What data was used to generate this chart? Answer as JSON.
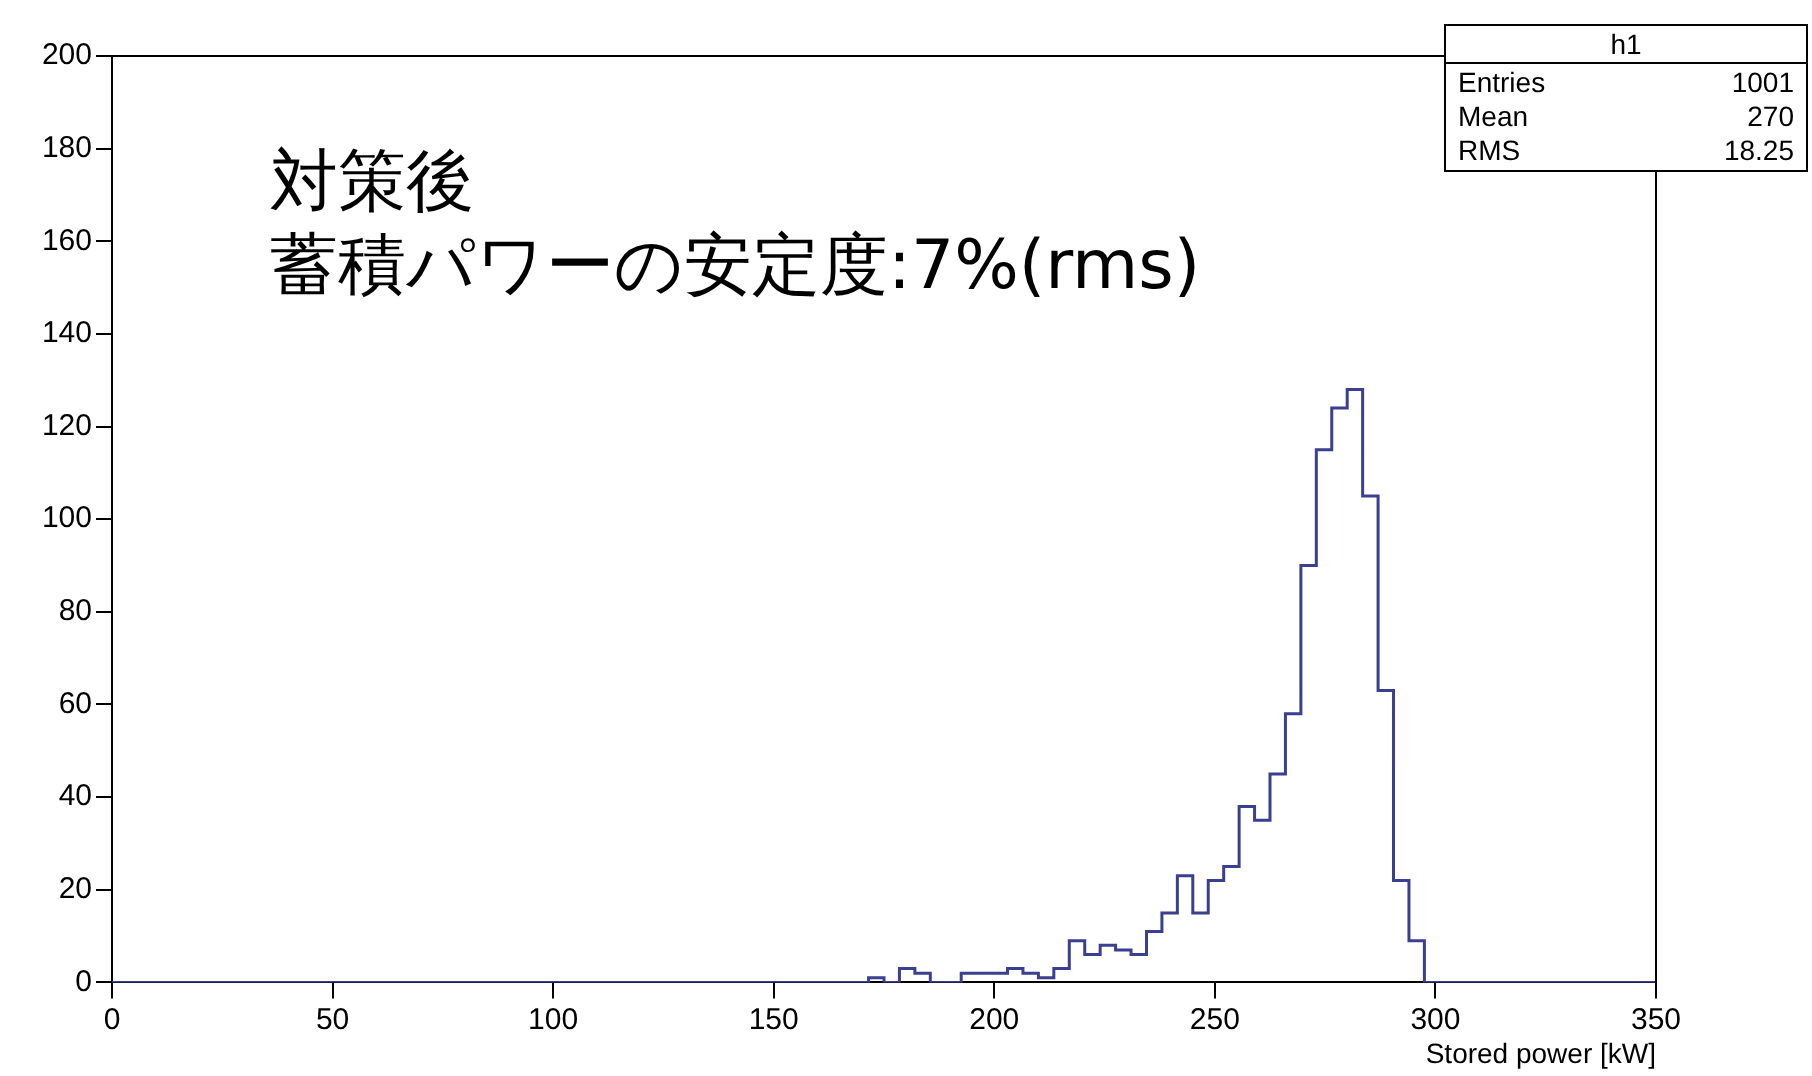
{
  "chart_data": {
    "type": "histogram",
    "xlabel": "Stored power [kW]",
    "annotations": [
      "対策後",
      "蓄積パワーの安定度:7%(rms)",
      "h1",
      "Entries 1001",
      "Mean 270",
      "RMS 18.25"
    ],
    "bins": [
      0,
      3.5,
      7,
      10.5,
      14,
      17.5,
      21,
      24.5,
      28,
      31.5,
      35,
      38.5,
      42,
      45.5,
      49,
      52.5,
      56,
      59.5,
      63,
      66.5,
      70,
      73.5,
      77,
      80.5,
      84,
      87.5,
      91,
      94.5,
      98,
      101.5,
      105,
      108.5,
      112,
      115.5,
      119,
      122.5,
      126,
      129.5,
      133,
      136.5,
      140,
      143.5,
      147,
      150.5,
      154,
      157.5,
      161,
      164.5,
      168,
      171.5,
      175,
      178.5,
      182,
      185.5,
      189,
      192.5,
      196,
      199.5,
      203,
      206.5,
      210,
      213.5,
      217,
      220.5,
      224,
      227.5,
      231,
      234.5,
      238,
      241.5,
      245,
      248.5,
      252,
      255.5,
      259,
      262.5,
      266,
      269.5,
      273,
      276.5,
      280,
      283.5,
      287,
      290.5,
      294,
      297.5,
      301,
      304.5,
      308,
      311.5,
      315,
      318.5,
      322,
      325.5,
      329,
      332.5,
      336,
      339.5,
      343,
      346.5,
      350
    ],
    "values": [
      0,
      0,
      0,
      0,
      0,
      0,
      0,
      0,
      0,
      0,
      0,
      0,
      0,
      0,
      0,
      0,
      0,
      0,
      0,
      0,
      0,
      0,
      0,
      0,
      0,
      0,
      0,
      0,
      0,
      0,
      0,
      0,
      0,
      0,
      0,
      0,
      0,
      0,
      0,
      0,
      0,
      0,
      0,
      0,
      0,
      0,
      0,
      0,
      0,
      1,
      0,
      3,
      2,
      0,
      0,
      2,
      2,
      2,
      3,
      2,
      1,
      3,
      9,
      6,
      8,
      7,
      6,
      11,
      15,
      23,
      15,
      22,
      25,
      38,
      35,
      45,
      58,
      90,
      115,
      124,
      128,
      105,
      63,
      22,
      9,
      0,
      0,
      0,
      0,
      0,
      0,
      0,
      0,
      0,
      0,
      0,
      0,
      0,
      0,
      0
    ],
    "color": "#3b3f8f",
    "xlim": [
      0,
      350
    ],
    "xticks": [
      0,
      50,
      100,
      150,
      200,
      250,
      300,
      350
    ],
    "ylim": [
      0,
      200
    ],
    "yticks": [
      0,
      20,
      40,
      60,
      80,
      100,
      120,
      140,
      160,
      180,
      200
    ],
    "grid": false,
    "legend": false
  }
}
